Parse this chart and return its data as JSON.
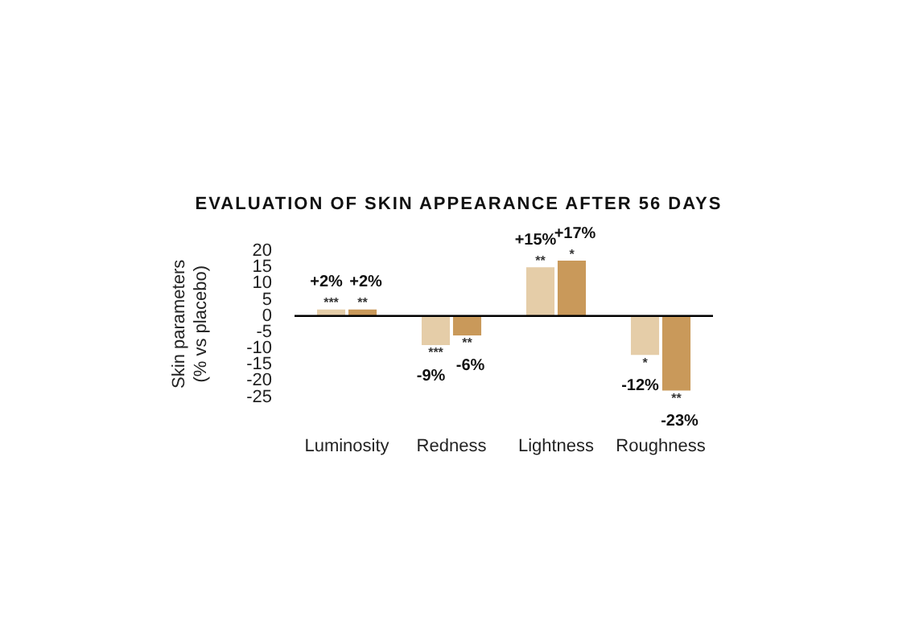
{
  "chart_data": {
    "type": "bar",
    "title": "EVALUATION OF SKIN APPEARANCE AFTER 56 DAYS",
    "ylabel": "Skin parameters (% vs placebo)",
    "categories": [
      "Luminosity",
      "Redness",
      "Lightness",
      "Roughness"
    ],
    "series": [
      {
        "color": "#e5cda8",
        "values": [
          2,
          -9,
          15,
          -12
        ],
        "value_labels": [
          "+2%",
          "-9%",
          "+15%",
          "-12%"
        ]
      },
      {
        "color": "#c9995a",
        "values": [
          2,
          -6,
          17,
          -23
        ],
        "value_labels": [
          "+2%",
          "-6%",
          "+17%",
          "-23%"
        ]
      }
    ],
    "ylim": [
      -25,
      20
    ],
    "yticks": [
      20,
      15,
      10,
      5,
      0,
      -5,
      -10,
      -15,
      -20,
      -25
    ],
    "annotations": [
      {
        "text": "***",
        "x": "Luminosity",
        "y": 2
      },
      {
        "text": "**",
        "x": "Luminosity",
        "y": 2
      },
      {
        "text": "***",
        "x": "Redness",
        "y": -9
      },
      {
        "text": "**",
        "x": "Redness",
        "y": -6
      },
      {
        "text": "**",
        "x": "Lightness",
        "y": 15
      },
      {
        "text": "*",
        "x": "Lightness",
        "y": 17
      },
      {
        "text": "*",
        "x": "Roughness",
        "y": -12
      },
      {
        "text": "**",
        "x": "Roughness",
        "y": -23
      }
    ],
    "ref_lines": [
      {
        "axis": "y",
        "value": 0,
        "color": "#000000"
      }
    ],
    "grid": false,
    "legend": false
  }
}
